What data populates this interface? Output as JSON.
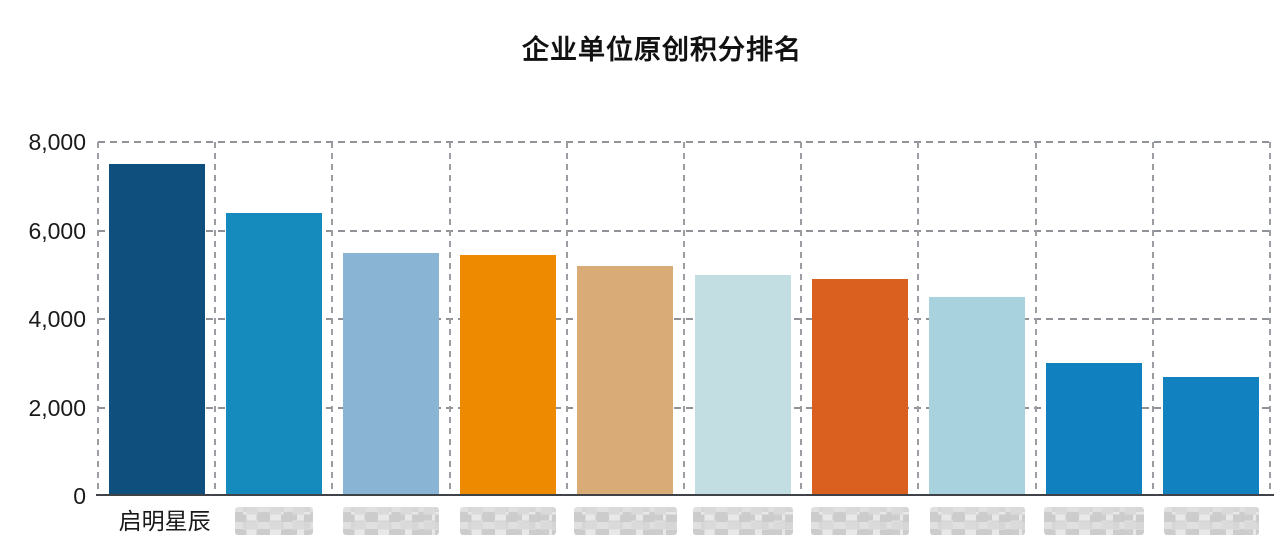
{
  "chart_data": {
    "type": "bar",
    "title": "企业单位原创积分排名",
    "categories": [
      "启明星辰",
      "",
      "",
      "",
      "",
      "",
      "",
      "",
      "",
      ""
    ],
    "categories_redacted": [
      false,
      true,
      true,
      true,
      true,
      true,
      true,
      true,
      true,
      true
    ],
    "values": [
      7500,
      6400,
      5500,
      5450,
      5200,
      5000,
      4900,
      4500,
      3000,
      2700
    ],
    "bar_colors": [
      "#0e4f7e",
      "#148abd",
      "#8ab4d4",
      "#ee8a00",
      "#d8ab77",
      "#c3dee3",
      "#d9601f",
      "#a9d2df",
      "#1180bf",
      "#1181c0"
    ],
    "xlabel": "",
    "ylabel": "",
    "ylim": [
      0,
      8000
    ],
    "yticks": [
      0,
      2000,
      4000,
      6000,
      8000
    ],
    "ytick_labels": [
      "0",
      "2,000",
      "4,000",
      "6,000",
      "8,000"
    ],
    "grid": "dashed-both-axes",
    "legend": "none"
  },
  "colors": {
    "grid_line": "#9a9ea3",
    "axis_line": "#3f4347",
    "text": "#1a1a1a",
    "background": "#ffffff",
    "redaction_mosaic": "#d0d0d0"
  }
}
